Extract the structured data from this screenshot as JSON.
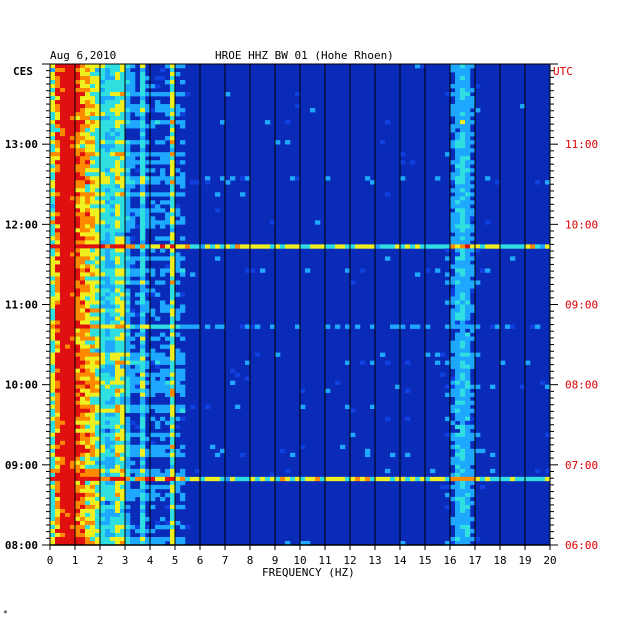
{
  "header": {
    "date": "Aug 6,2010",
    "station": "HROE HHZ BW 01 (Hohe Rhoen)",
    "left_tz": "CES",
    "right_tz": "UTC"
  },
  "footer_mark": "*",
  "colors": {
    "background_field": "#0a2ab8",
    "grid_line": "#000000",
    "left_labels": "#000000",
    "right_labels": "#dd0000"
  },
  "chart_data": {
    "type": "heatmap",
    "title": "HROE HHZ BW 01 (Hohe Rhoen)",
    "xlabel": "FREQUENCY (HZ)",
    "ylabel": "",
    "xlim": [
      0,
      20
    ],
    "x_ticks": [
      "0",
      "1",
      "2",
      "3",
      "4",
      "5",
      "6",
      "7",
      "8",
      "9",
      "10",
      "11",
      "12",
      "13",
      "14",
      "15",
      "16",
      "17",
      "18",
      "19",
      "20"
    ],
    "y_range_hours": [
      8,
      14
    ],
    "left_ticks": [
      {
        "hour": 8,
        "label": "08:00"
      },
      {
        "hour": 9,
        "label": "09:00"
      },
      {
        "hour": 10,
        "label": "10:00"
      },
      {
        "hour": 11,
        "label": "11:00"
      },
      {
        "hour": 12,
        "label": "12:00"
      },
      {
        "hour": 13,
        "label": "13:00"
      }
    ],
    "right_ticks": [
      {
        "hour": 8,
        "label": "06:00"
      },
      {
        "hour": 9,
        "label": "07:00"
      },
      {
        "hour": 10,
        "label": "08:00"
      },
      {
        "hour": 11,
        "label": "09:00"
      },
      {
        "hour": 12,
        "label": "10:00"
      },
      {
        "hour": 13,
        "label": "11:00"
      }
    ],
    "colormap": [
      "#0a1e9e",
      "#1040e0",
      "#1fa8ff",
      "#30e0e0",
      "#f0f020",
      "#ff8a00",
      "#e01010"
    ],
    "energy_bands_hz": [
      {
        "f": 0.6,
        "width": 0.5,
        "level": 0.85
      },
      {
        "f": 1.5,
        "width": 0.8,
        "level": 0.45
      },
      {
        "f": 2.8,
        "width": 0.3,
        "level": 0.35
      },
      {
        "f": 3.7,
        "width": 0.1,
        "level": 0.25
      },
      {
        "f": 4.9,
        "width": 0.1,
        "level": 0.35
      },
      {
        "f": 16.5,
        "width": 0.4,
        "level": 0.25
      }
    ],
    "event_lines_hours": [
      {
        "hour": 8.82,
        "level": 0.45
      },
      {
        "hour": 11.72,
        "level": 0.55
      },
      {
        "hour": 10.73,
        "level": 0.35
      }
    ]
  }
}
